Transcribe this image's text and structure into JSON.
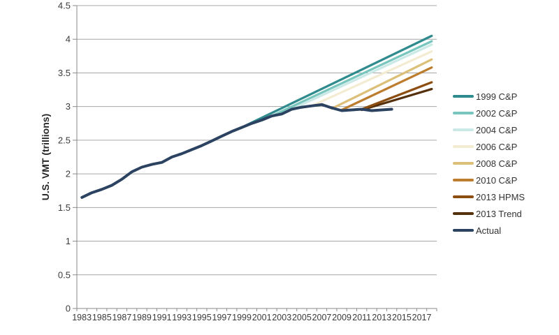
{
  "chart_data": {
    "type": "line",
    "title": "",
    "xlabel": "",
    "ylabel": "U.S. VMT (trillions)",
    "ylim": [
      0,
      4.5
    ],
    "ytick_step": 0.5,
    "ytick_labels": [
      "0",
      "0.5",
      "1",
      "1.5",
      "2",
      "2.5",
      "3",
      "3.5",
      "4",
      "4.5"
    ],
    "x_axis_range": [
      1983,
      2018
    ],
    "xtick_labels": [
      "1983",
      "1985",
      "1987",
      "1989",
      "1991",
      "1993",
      "1995",
      "1997",
      "1999",
      "2001",
      "2003",
      "2005",
      "2007",
      "2009",
      "2011",
      "2013",
      "2015",
      "2017"
    ],
    "grid": "horizontal-only",
    "legend_position": "right",
    "series": [
      {
        "name": "1999 C&P",
        "color": "#2f8b8d",
        "x": [
          1999,
          2018
        ],
        "values": [
          2.69,
          4.05
        ]
      },
      {
        "name": "2002 C&P",
        "color": "#79c6be",
        "x": [
          2002,
          2018
        ],
        "values": [
          2.86,
          3.97
        ]
      },
      {
        "name": "2004 C&P",
        "color": "#cbe9e6",
        "x": [
          2004,
          2018
        ],
        "values": [
          2.96,
          3.92
        ]
      },
      {
        "name": "2006 C&P",
        "color": "#f4ecd2",
        "x": [
          2006,
          2018
        ],
        "values": [
          3.01,
          3.82
        ]
      },
      {
        "name": "2008 C&P",
        "color": "#dcc07a",
        "x": [
          2008,
          2018
        ],
        "values": [
          2.97,
          3.7
        ]
      },
      {
        "name": "2010 C&P",
        "color": "#bd7d2e",
        "x": [
          2009,
          2018
        ],
        "values": [
          2.95,
          3.58
        ]
      },
      {
        "name": "2013 HPMS",
        "color": "#8c4e10",
        "x": [
          2011,
          2018
        ],
        "values": [
          2.96,
          3.36
        ]
      },
      {
        "name": "2013 Trend",
        "color": "#55300d",
        "x": [
          2011,
          2018
        ],
        "values": [
          2.95,
          3.26
        ]
      },
      {
        "name": "Actual",
        "color": "#2b4361",
        "x": [
          1983,
          1984,
          1985,
          1986,
          1987,
          1988,
          1989,
          1990,
          1991,
          1992,
          1993,
          1994,
          1995,
          1996,
          1997,
          1998,
          1999,
          2000,
          2001,
          2002,
          2003,
          2004,
          2005,
          2006,
          2007,
          2008,
          2009,
          2010,
          2011,
          2012,
          2013,
          2014
        ],
        "values": [
          1.65,
          1.72,
          1.77,
          1.83,
          1.92,
          2.03,
          2.1,
          2.14,
          2.17,
          2.25,
          2.3,
          2.36,
          2.42,
          2.49,
          2.56,
          2.63,
          2.69,
          2.75,
          2.8,
          2.86,
          2.89,
          2.96,
          2.99,
          3.01,
          3.03,
          2.98,
          2.94,
          2.95,
          2.96,
          2.94,
          2.95,
          2.96
        ]
      }
    ],
    "style_colors": {
      "axis": "#898989",
      "grid": "#a6a6a6",
      "text": "#3a3a3a",
      "background": "#ffffff"
    }
  }
}
